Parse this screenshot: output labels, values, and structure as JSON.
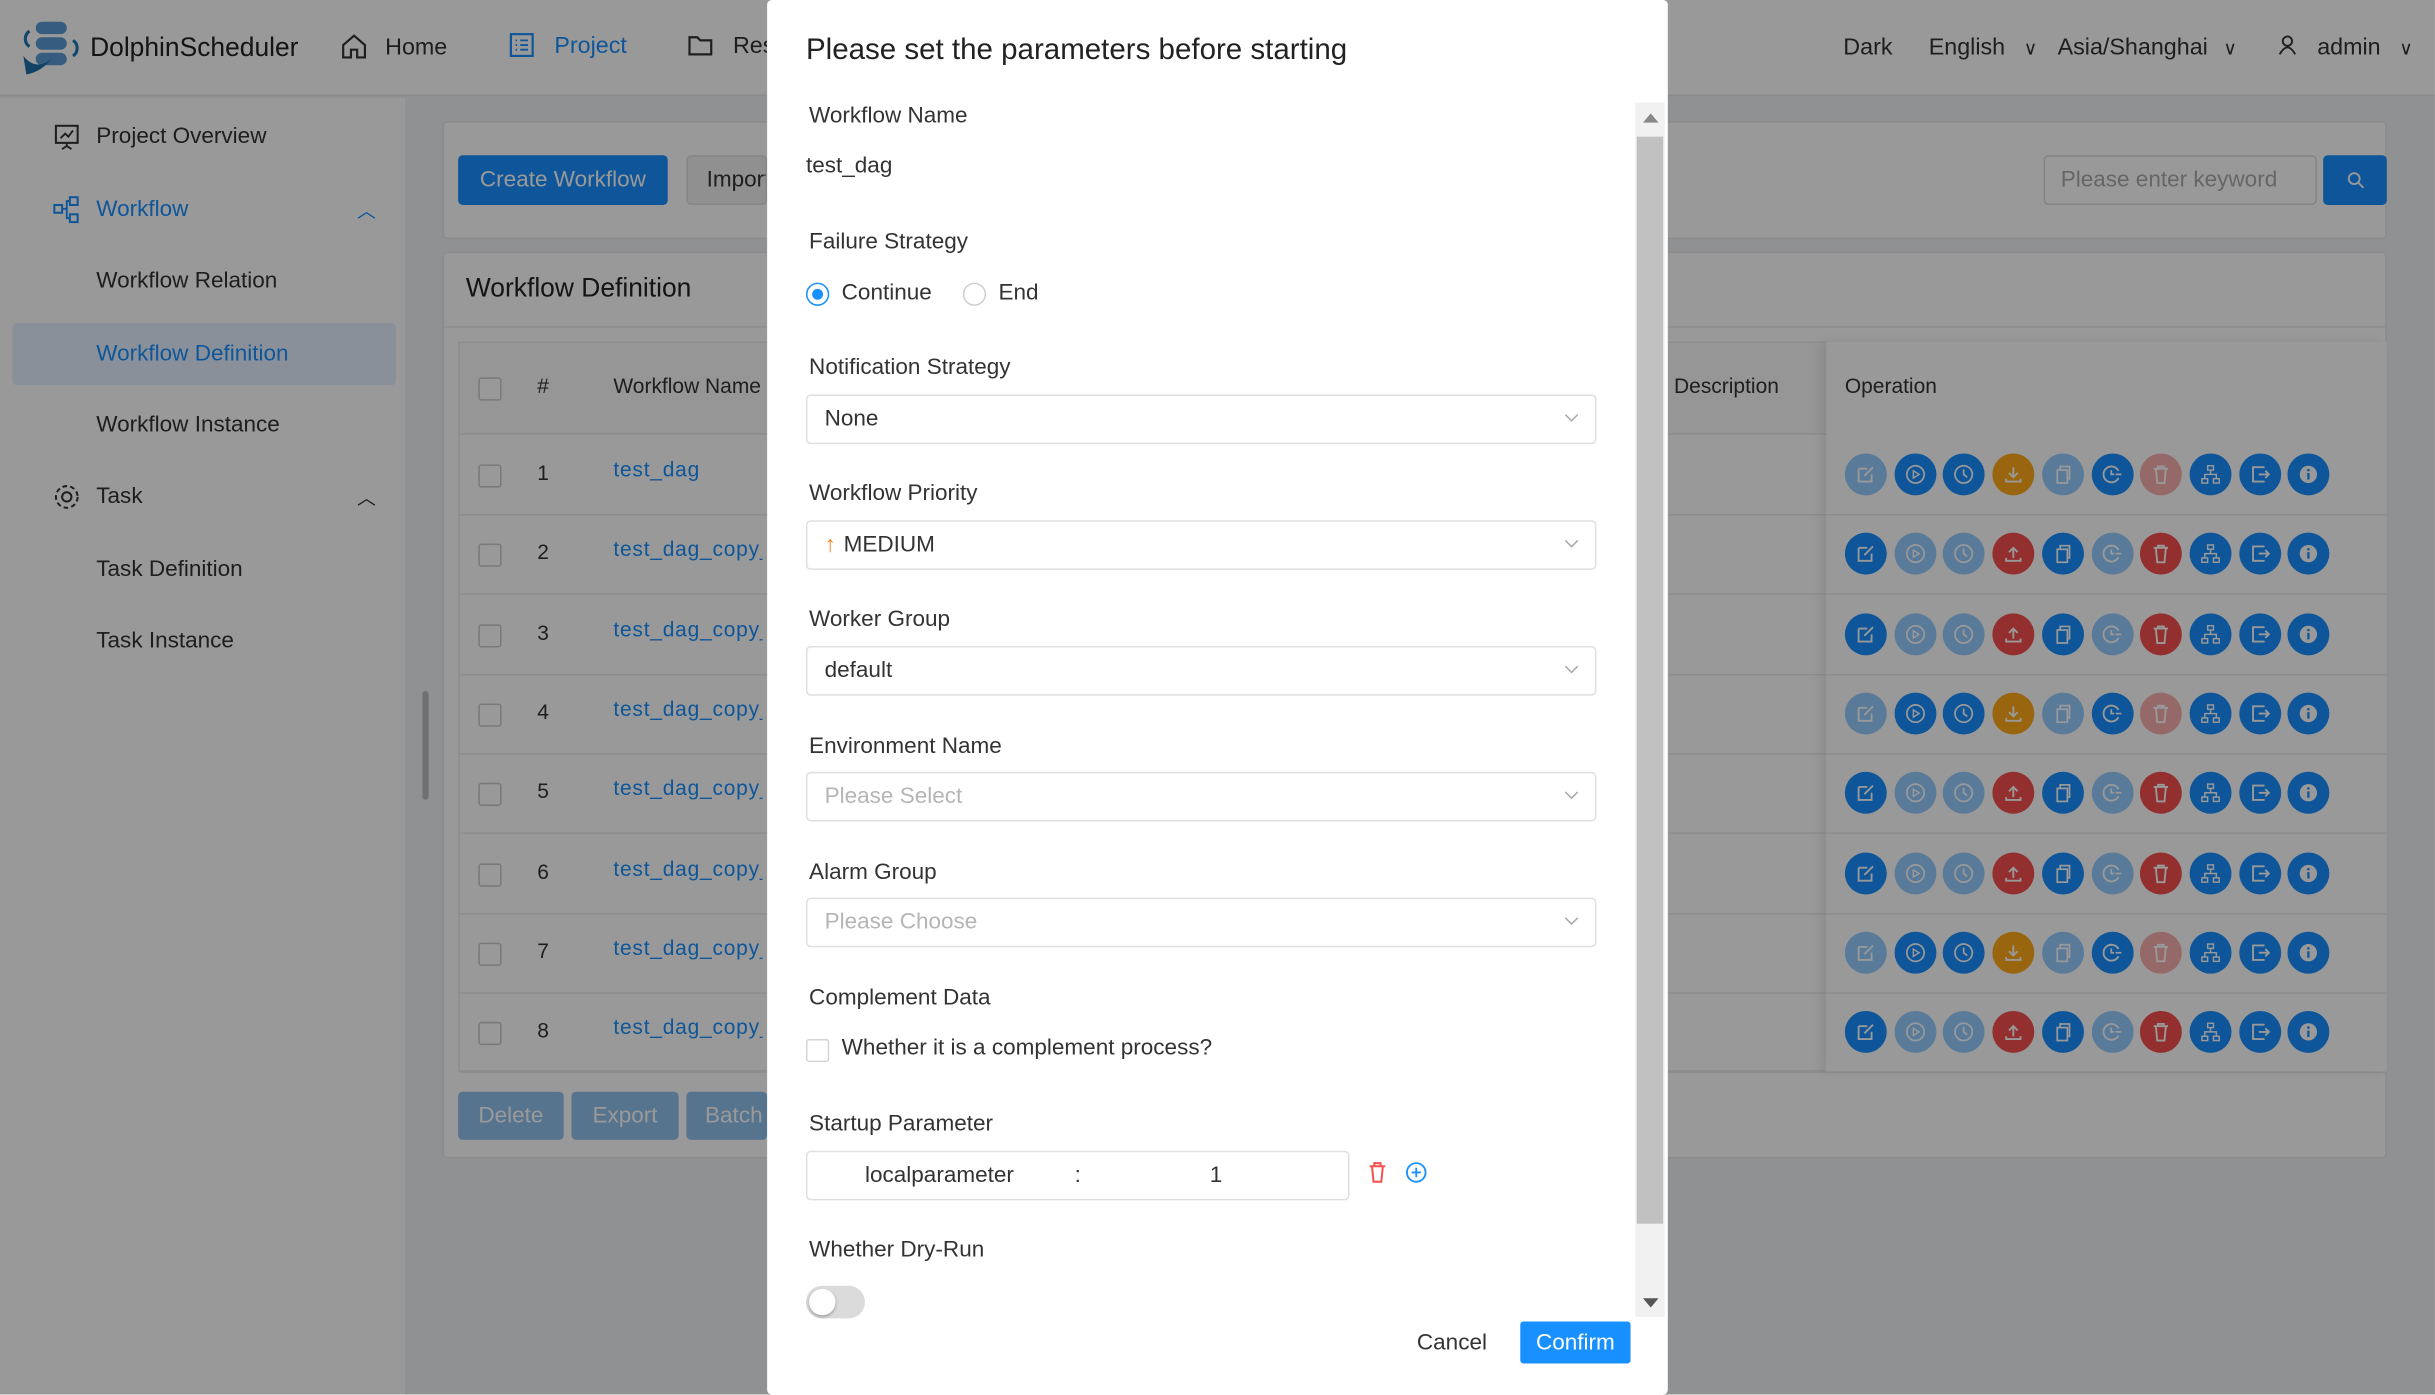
{
  "header": {
    "app_name": "DolphinScheduler",
    "nav": [
      {
        "label": "Home",
        "icon": "home-icon"
      },
      {
        "label": "Project",
        "icon": "project-icon",
        "active": true
      },
      {
        "label": "Resources",
        "icon": "folder-icon"
      }
    ],
    "theme": "Dark",
    "language": "English",
    "timezone": "Asia/Shanghai",
    "user": "admin"
  },
  "sidebar": {
    "items": [
      {
        "label": "Project Overview"
      },
      {
        "label": "Workflow"
      },
      {
        "label": "Workflow Relation"
      },
      {
        "label": "Workflow Definition",
        "selected": true
      },
      {
        "label": "Workflow Instance"
      },
      {
        "label": "Task"
      },
      {
        "label": "Task Definition"
      },
      {
        "label": "Task Instance"
      }
    ]
  },
  "toolbar": {
    "create": "Create Workflow",
    "import": "Import Workflow",
    "search_placeholder": "Please enter keyword"
  },
  "table": {
    "title": "Workflow Definition",
    "headers": {
      "index": "#",
      "name": "Workflow Name",
      "description": "Description",
      "operation": "Operation"
    },
    "rows": [
      {
        "index": "1",
        "name": "test_dag",
        "online": true
      },
      {
        "index": "2",
        "name": "test_dag_copy_",
        "online": false
      },
      {
        "index": "3",
        "name": "test_dag_copy_",
        "online": false
      },
      {
        "index": "4",
        "name": "test_dag_copy_",
        "online": true
      },
      {
        "index": "5",
        "name": "test_dag_copy_",
        "online": false
      },
      {
        "index": "6",
        "name": "test_dag_copy_",
        "online": false
      },
      {
        "index": "7",
        "name": "test_dag_copy_",
        "online": true
      },
      {
        "index": "8",
        "name": "test_dag_copy_",
        "online": false
      }
    ],
    "footer": {
      "delete": "Delete",
      "export": "Export",
      "batch_copy": "Batch Copy"
    }
  },
  "colors": {
    "primary": "#1890ff",
    "online_action": "#ffab1a",
    "offline_action": "#f5504f"
  },
  "modal": {
    "title": "Please set the parameters before starting",
    "workflow_name_label": "Workflow Name",
    "workflow_name": "test_dag",
    "failure_strategy_label": "Failure Strategy",
    "failure_options": [
      "Continue",
      "End"
    ],
    "failure_selected": "Continue",
    "notification_label": "Notification Strategy",
    "notification_value": "None",
    "priority_label": "Workflow Priority",
    "priority_value": "MEDIUM",
    "worker_group_label": "Worker Group",
    "worker_group_value": "default",
    "environment_label": "Environment Name",
    "environment_placeholder": "Please Select",
    "alarm_label": "Alarm Group",
    "alarm_placeholder": "Please Choose",
    "complement_label": "Complement Data",
    "complement_checkbox": "Whether it is a complement process?",
    "startup_label": "Startup Parameter",
    "param_key": "localparameter",
    "param_sep": ":",
    "param_value": "1",
    "dryrun_label": "Whether Dry-Run",
    "dryrun_on": false,
    "cancel": "Cancel",
    "confirm": "Confirm"
  }
}
